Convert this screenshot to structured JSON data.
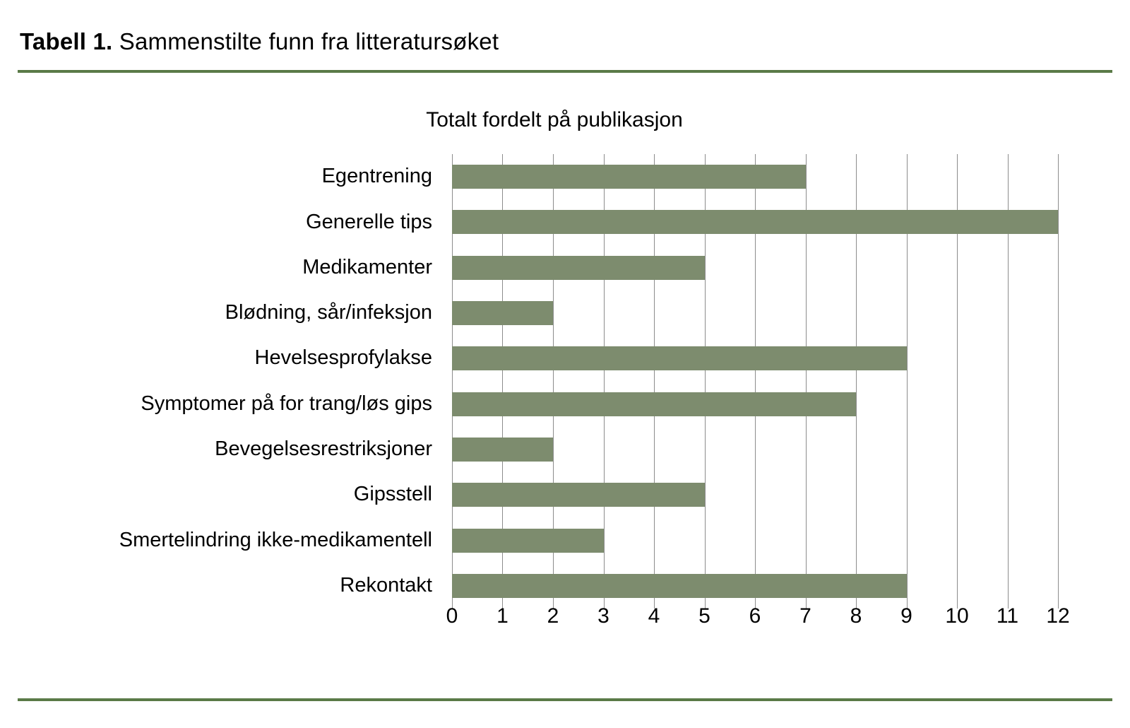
{
  "caption": {
    "bold": "Tabell 1.",
    "text": " Sammenstilte funn fra litteratursøket"
  },
  "chart_data": {
    "type": "bar",
    "orientation": "horizontal",
    "title": "Totalt fordelt på publikasjon",
    "categories": [
      "Egentrening",
      "Generelle tips",
      "Medikamenter",
      "Blødning, sår/infeksjon",
      "Hevelsesprofylakse",
      "Symptomer på for trang/løs gips",
      "Bevegelsesrestriksjoner",
      "Gipsstell",
      "Smertelindring ikke-medikamentell",
      "Rekontakt"
    ],
    "values": [
      7,
      12,
      5,
      2,
      9,
      8,
      2,
      5,
      3,
      9
    ],
    "xlabel": "",
    "ylabel": "",
    "xlim": [
      0,
      12
    ],
    "xticks": [
      0,
      1,
      2,
      3,
      4,
      5,
      6,
      7,
      8,
      9,
      10,
      11,
      12
    ],
    "grid": "vertical",
    "legend": "none",
    "colors": {
      "bar": "#7D8C6E",
      "gridline": "#8C8C8C",
      "divider": "#5A7A47",
      "text": "#000000",
      "background": "#FFFFFF"
    }
  }
}
